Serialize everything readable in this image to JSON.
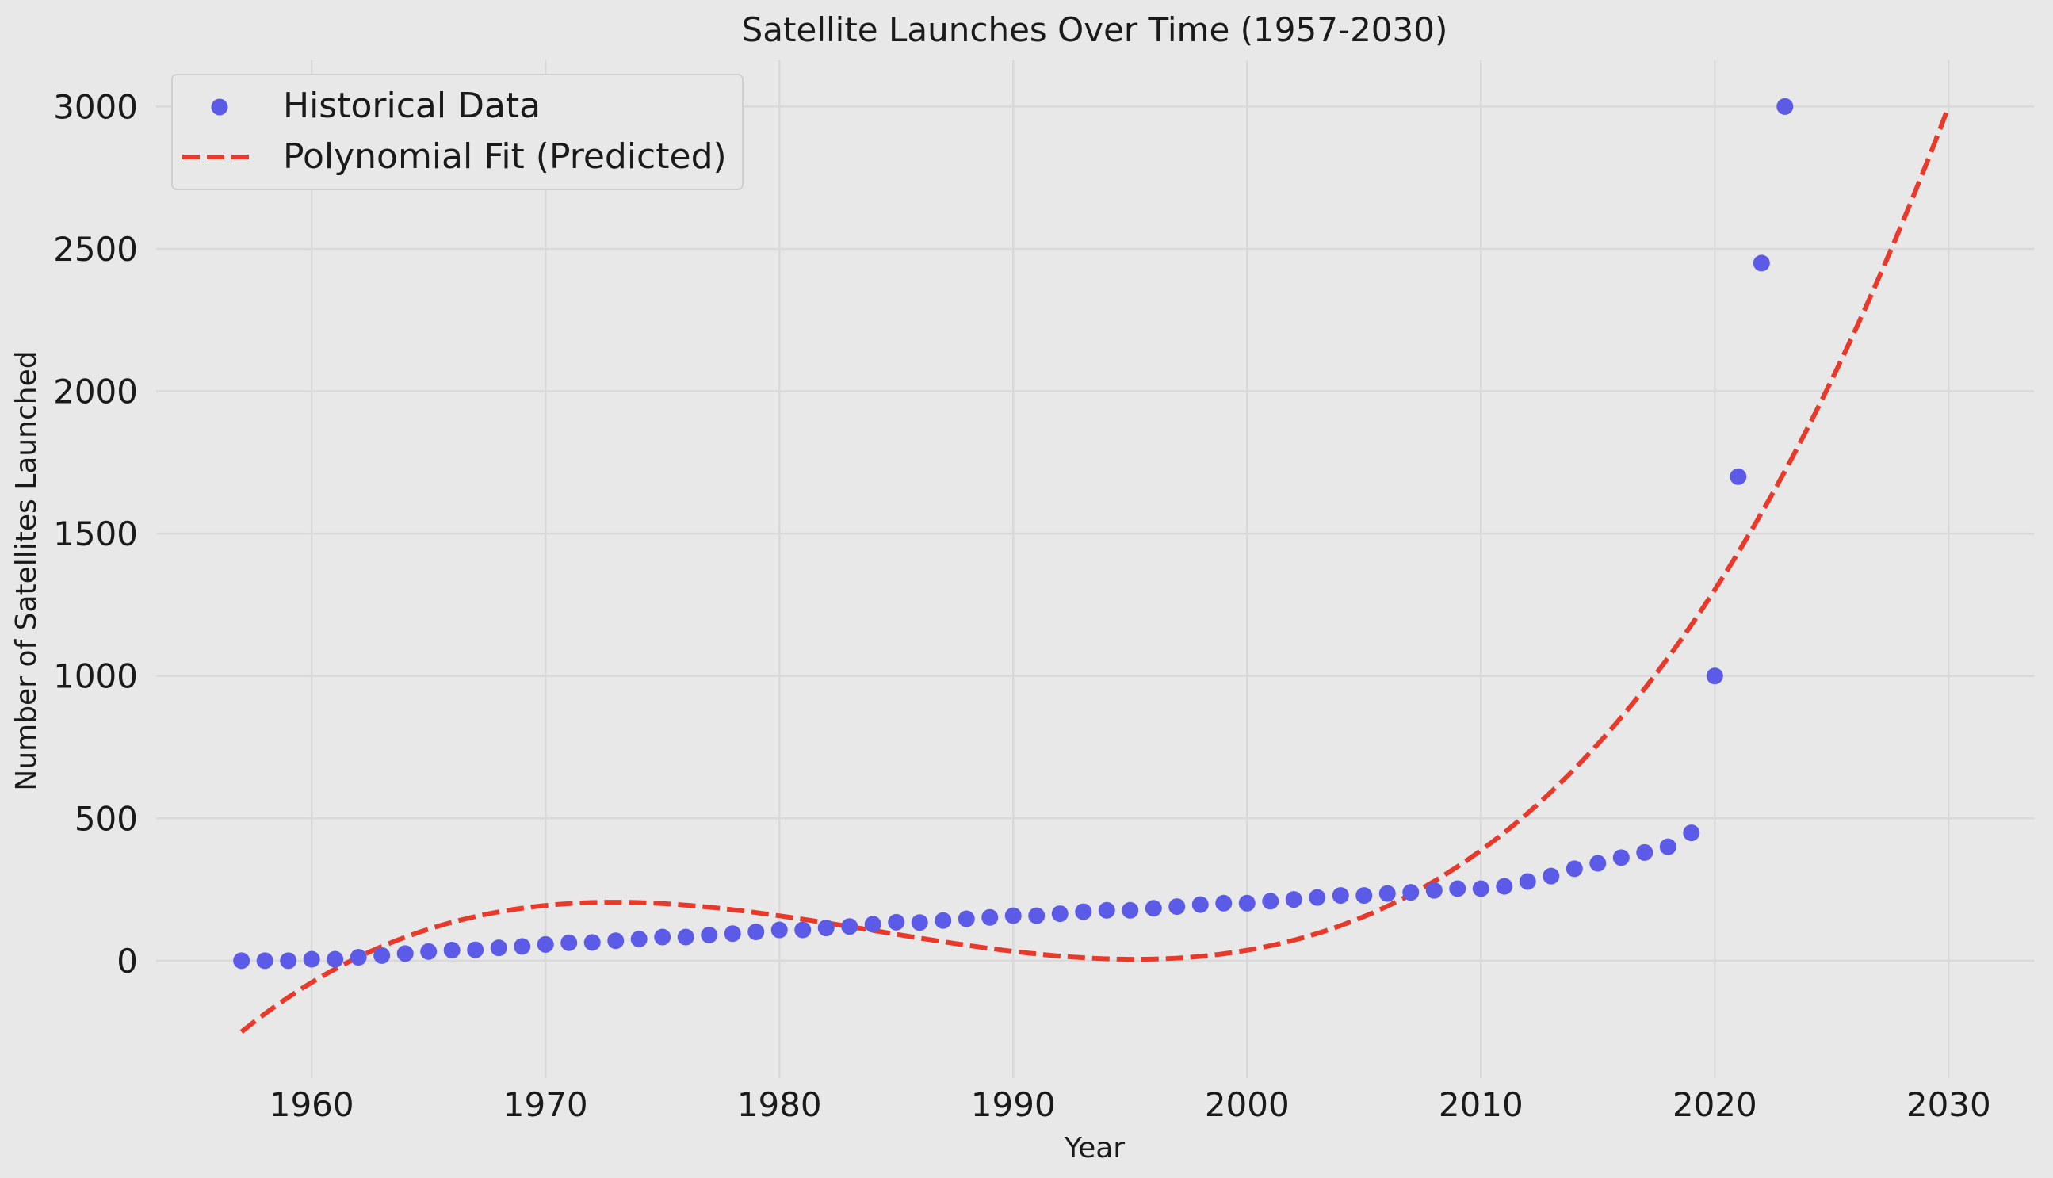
{
  "chart_data": {
    "type": "scatter",
    "title": "Satellite Launches Over Time (1957-2030)",
    "xlabel": "Year",
    "ylabel": "Number of Satellites Launched",
    "xlim": [
      1953.35,
      2033.65
    ],
    "ylim": [
      -412.5,
      3162.5
    ],
    "xticks": [
      1960,
      1970,
      1980,
      1990,
      2000,
      2010,
      2020,
      2030
    ],
    "yticks": [
      0,
      500,
      1000,
      1500,
      2000,
      2500,
      3000
    ],
    "grid": true,
    "background": "#e8e8e8",
    "legend": {
      "placement": "top-left",
      "entries": [
        {
          "label": "Historical Data",
          "marker": "circle",
          "color": "#5b5be8"
        },
        {
          "label": "Polynomial Fit (Predicted)",
          "marker": "dashed-line",
          "color": "#e8392b"
        }
      ]
    },
    "series": [
      {
        "name": "Historical Data",
        "type": "scatter",
        "color": "#5b5be8",
        "x": [
          1957,
          1958,
          1959,
          1960,
          1961,
          1962,
          1963,
          1964,
          1965,
          1966,
          1967,
          1968,
          1969,
          1970,
          1971,
          1972,
          1973,
          1974,
          1975,
          1976,
          1977,
          1978,
          1979,
          1980,
          1981,
          1982,
          1983,
          1984,
          1985,
          1986,
          1987,
          1988,
          1989,
          1990,
          1991,
          1992,
          1993,
          1994,
          1995,
          1996,
          1997,
          1998,
          1999,
          2000,
          2001,
          2002,
          2003,
          2004,
          2005,
          2006,
          2007,
          2008,
          2009,
          2010,
          2011,
          2012,
          2013,
          2014,
          2015,
          2016,
          2017,
          2018,
          2019,
          2020,
          2021,
          2022,
          2023
        ],
        "y": [
          0,
          0,
          0,
          5,
          5,
          12,
          18,
          25,
          32,
          37,
          38,
          45,
          50,
          57,
          63,
          64,
          70,
          76,
          83,
          83,
          90,
          95,
          101,
          108,
          108,
          115,
          120,
          128,
          135,
          134,
          141,
          147,
          152,
          158,
          158,
          165,
          172,
          177,
          177,
          184,
          190,
          197,
          202,
          202,
          209,
          215,
          222,
          229,
          229,
          236,
          240,
          247,
          253,
          253,
          261,
          278,
          297,
          323,
          342,
          362,
          380,
          400,
          449,
          1000,
          1700,
          2450,
          3000
        ]
      },
      {
        "name": "Polynomial Fit (Predicted)",
        "type": "line",
        "style": "dashed",
        "color": "#e8392b",
        "x_range": [
          1957,
          2030
        ],
        "polynomial_in_t": {
          "t": "year - 1957",
          "coefficients_ascending": [
            -250,
            66.35,
            -2.94887,
            0.036299
          ]
        },
        "sample_points": [
          {
            "x": 1957,
            "y": -250
          },
          {
            "x": 1960,
            "y": -77
          },
          {
            "x": 1970,
            "y": 194
          },
          {
            "x": 1973.5,
            "y": 205
          },
          {
            "x": 1980,
            "y": 158
          },
          {
            "x": 1990,
            "y": 33
          },
          {
            "x": 1995.5,
            "y": 5
          },
          {
            "x": 2000,
            "y": 37
          },
          {
            "x": 2010,
            "y": 387
          },
          {
            "x": 2020,
            "y": 1302
          },
          {
            "x": 2030,
            "y": 3000
          }
        ]
      }
    ]
  }
}
